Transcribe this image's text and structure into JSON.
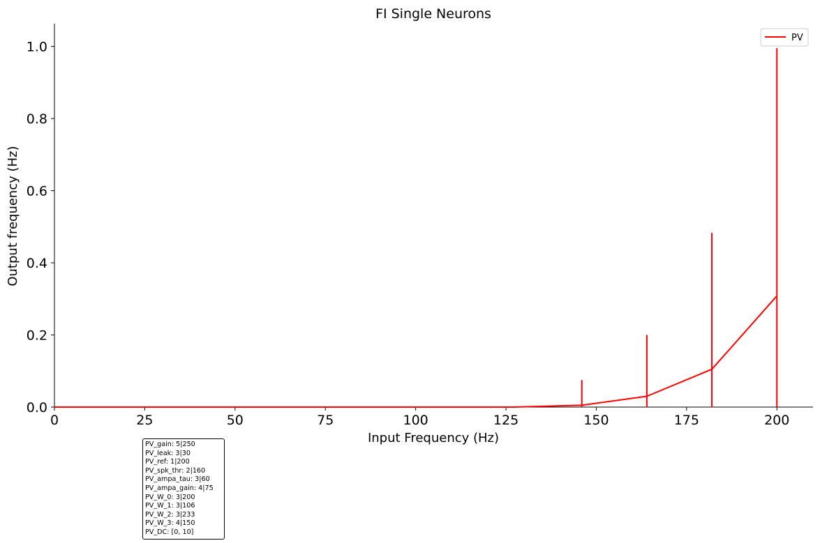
{
  "chart_data": {
    "type": "line",
    "title": "FI Single Neurons",
    "xlabel": "Input Frequency (Hz)",
    "ylabel": "Output frequency (Hz)",
    "xlim": [
      0,
      210
    ],
    "ylim": [
      0,
      1.063
    ],
    "xticks": [
      0,
      25,
      50,
      75,
      100,
      125,
      150,
      175,
      200
    ],
    "yticks": [
      0.0,
      0.2,
      0.4,
      0.6,
      0.8,
      1.0
    ],
    "xtick_labels": [
      "0",
      "25",
      "50",
      "75",
      "100",
      "125",
      "150",
      "175",
      "200"
    ],
    "ytick_labels": [
      "0.0",
      "0.2",
      "0.4",
      "0.6",
      "0.8",
      "1.0"
    ],
    "legend_position": "top-right",
    "grid": false,
    "series": [
      {
        "name": "PV",
        "color": "#ff0000",
        "x": [
          0,
          18,
          36,
          55,
          73,
          91,
          109,
          127,
          146,
          164,
          182,
          200
        ],
        "y": [
          0,
          0,
          0,
          0,
          0,
          0,
          0,
          0,
          0.005,
          0.03,
          0.105,
          0.308
        ],
        "error_bars": [
          {
            "x": 146,
            "low": 0.0,
            "high": 0.075
          },
          {
            "x": 164,
            "low": 0.0,
            "high": 0.2
          },
          {
            "x": 182,
            "low": 0.0,
            "high": 0.483
          },
          {
            "x": 200,
            "low": 0.0,
            "high": 0.995
          }
        ]
      }
    ]
  },
  "params": [
    "PV_gain: 5|250",
    "PV_leak: 3|30",
    "PV_ref: 1|200",
    "PV_spk_thr: 2|160",
    "PV_ampa_tau: 3|60",
    "PV_ampa_gain: 4|75",
    "PV_W_0: 3|200",
    "PV_W_1: 3|106",
    "PV_W_2: 3|233",
    "PV_W_3: 4|150",
    "PV_DC: [0, 10]"
  ]
}
